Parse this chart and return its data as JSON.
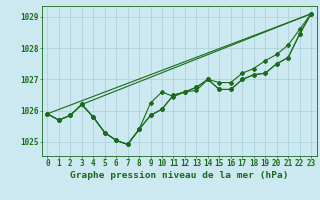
{
  "background_color": "#cce8f0",
  "grid_color": "#aacfdb",
  "line_color": "#1a6b1a",
  "title": "Graphe pression niveau de la mer (hPa)",
  "tick_fontsize": 5.5,
  "xlabel_fontsize": 6.8,
  "ylim": [
    1024.55,
    1029.35
  ],
  "yticks": [
    1025,
    1026,
    1027,
    1028,
    1029
  ],
  "xticks": [
    0,
    1,
    2,
    3,
    4,
    5,
    6,
    7,
    8,
    9,
    10,
    11,
    12,
    13,
    14,
    15,
    16,
    17,
    18,
    19,
    20,
    21,
    22,
    23
  ],
  "line1": [
    1025.9,
    1025.7,
    1025.85,
    1026.2,
    1025.8,
    1025.3,
    1025.05,
    1024.92,
    1025.4,
    1025.85,
    1026.05,
    1026.5,
    1026.6,
    1026.75,
    1027.0,
    1026.68,
    1026.68,
    1027.0,
    1027.15,
    1027.2,
    1027.5,
    1027.7,
    1028.45,
    1029.1
  ],
  "line2": [
    1025.9,
    1025.7,
    1025.85,
    1026.2,
    1025.8,
    1025.3,
    1025.05,
    1024.92,
    1025.4,
    1026.25,
    1026.6,
    1026.45,
    1026.6,
    1026.65,
    1027.0,
    1026.68,
    1026.68,
    1027.0,
    1027.15,
    1027.2,
    1027.5,
    1027.7,
    1028.45,
    1029.1
  ],
  "line3": [
    1025.9,
    1025.7,
    1025.85,
    1026.2,
    1025.8,
    1025.3,
    1025.05,
    1024.92,
    1025.4,
    1025.85,
    1026.05,
    1026.5,
    1026.6,
    1026.75,
    1027.0,
    1026.9,
    1026.9,
    1027.2,
    1027.35,
    1027.6,
    1027.8,
    1028.1,
    1028.6,
    1029.1
  ],
  "line4_x": [
    0,
    23
  ],
  "line4_y": [
    1025.9,
    1029.1
  ],
  "line5_x": [
    3,
    23
  ],
  "line5_y": [
    1026.2,
    1029.1
  ]
}
